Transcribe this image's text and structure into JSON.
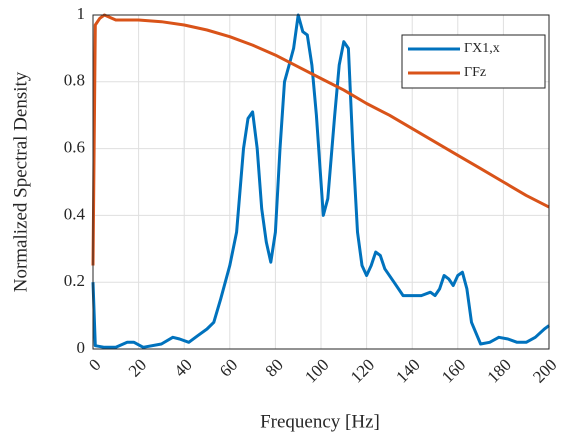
{
  "chart_data": {
    "type": "line",
    "xlabel": "Frequency [Hz]",
    "ylabel": "Normalized Spectral Density",
    "xlim": [
      0,
      200
    ],
    "ylim": [
      0,
      1
    ],
    "xticks": [
      0,
      20,
      40,
      60,
      80,
      100,
      120,
      140,
      160,
      180,
      200
    ],
    "yticks": [
      0,
      0.2,
      0.4,
      0.6,
      0.8,
      1
    ],
    "grid": true,
    "legend": "upper right",
    "series": [
      {
        "name": "ΓX1,x",
        "color": "#0072bd",
        "x": [
          0,
          1,
          5,
          10,
          15,
          18,
          22,
          30,
          35,
          38,
          42,
          46,
          50,
          53,
          56,
          60,
          63,
          66,
          68,
          70,
          72,
          74,
          76,
          78,
          80,
          82,
          84,
          86,
          88,
          90,
          92,
          94,
          96,
          98,
          100,
          101,
          103,
          106,
          108,
          110,
          112,
          114,
          116,
          118,
          120,
          122,
          124,
          126,
          128,
          132,
          136,
          140,
          144,
          148,
          150,
          152,
          154,
          156,
          158,
          160,
          162,
          164,
          166,
          170,
          174,
          178,
          182,
          186,
          190,
          194,
          198,
          200
        ],
        "values": [
          0.2,
          0.01,
          0.005,
          0.005,
          0.02,
          0.02,
          0.005,
          0.015,
          0.035,
          0.03,
          0.02,
          0.04,
          0.06,
          0.08,
          0.15,
          0.25,
          0.35,
          0.6,
          0.69,
          0.71,
          0.6,
          0.42,
          0.32,
          0.26,
          0.35,
          0.6,
          0.8,
          0.85,
          0.9,
          1.0,
          0.95,
          0.94,
          0.85,
          0.7,
          0.5,
          0.4,
          0.45,
          0.7,
          0.85,
          0.92,
          0.9,
          0.6,
          0.35,
          0.25,
          0.22,
          0.25,
          0.29,
          0.28,
          0.24,
          0.2,
          0.16,
          0.16,
          0.16,
          0.17,
          0.16,
          0.18,
          0.22,
          0.21,
          0.19,
          0.22,
          0.23,
          0.18,
          0.08,
          0.015,
          0.02,
          0.035,
          0.03,
          0.02,
          0.02,
          0.035,
          0.06,
          0.07
        ]
      },
      {
        "name": "ΓFz",
        "color": "#d95319",
        "x": [
          0,
          1,
          3,
          5,
          10,
          20,
          30,
          40,
          50,
          60,
          70,
          80,
          90,
          100,
          110,
          120,
          130,
          140,
          150,
          160,
          170,
          180,
          190,
          200
        ],
        "values": [
          0.25,
          0.97,
          0.99,
          1.0,
          0.985,
          0.985,
          0.98,
          0.97,
          0.955,
          0.935,
          0.91,
          0.88,
          0.845,
          0.81,
          0.775,
          0.735,
          0.7,
          0.66,
          0.62,
          0.58,
          0.54,
          0.5,
          0.46,
          0.425
        ]
      }
    ]
  }
}
